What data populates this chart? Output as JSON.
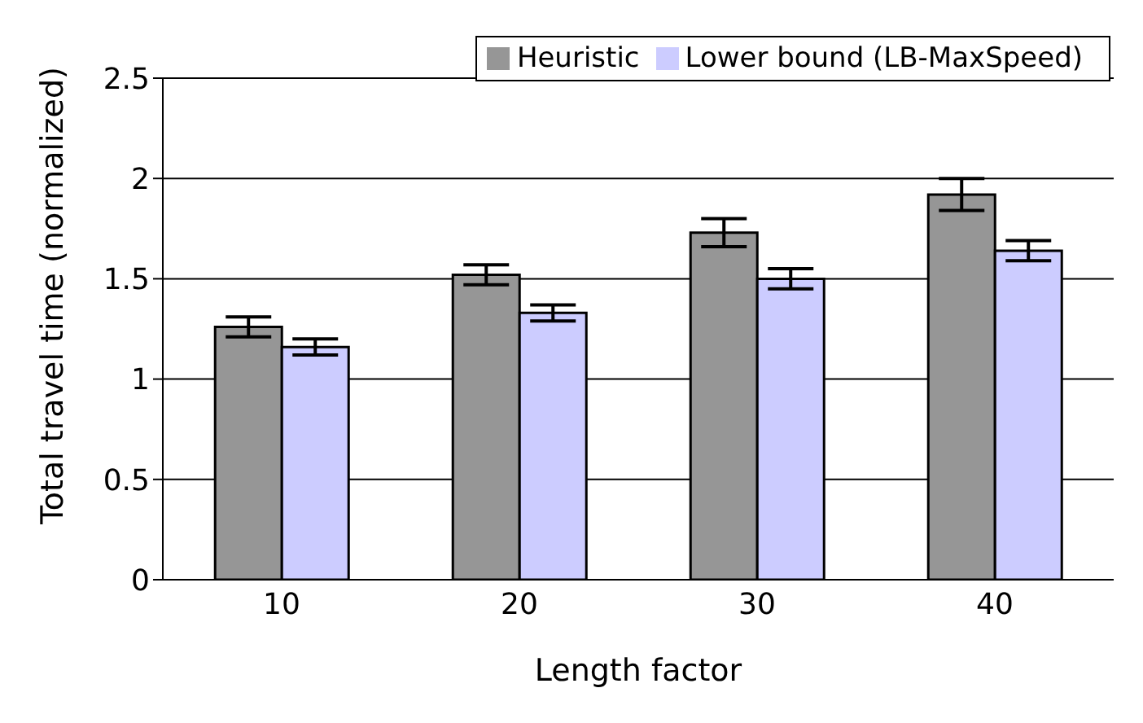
{
  "chart_data": {
    "type": "bar",
    "xlabel": "Length factor",
    "ylabel": "Total travel time (normalized)",
    "categories": [
      "10",
      "20",
      "30",
      "40"
    ],
    "series": [
      {
        "name": "Heuristic",
        "color": "#969696",
        "values": [
          1.26,
          1.52,
          1.73,
          1.92
        ],
        "errors": [
          0.05,
          0.05,
          0.07,
          0.08
        ]
      },
      {
        "name": "Lower bound (LB-MaxSpeed)",
        "color": "#ccccff",
        "values": [
          1.16,
          1.33,
          1.5,
          1.64
        ],
        "errors": [
          0.04,
          0.04,
          0.05,
          0.05
        ]
      }
    ],
    "ylim": [
      0,
      2.5
    ],
    "yticks": [
      0,
      0.5,
      1,
      1.5,
      2,
      2.5
    ],
    "grid": "y",
    "legend": "top right"
  }
}
